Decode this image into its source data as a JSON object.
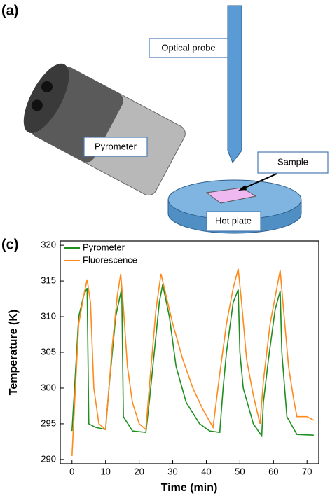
{
  "diagram": {
    "label": "(a)",
    "labels": [
      "Optical probe",
      "Pyrometer",
      "Sample",
      "Hot plate"
    ]
  },
  "chart_data": {
    "type": "line",
    "label": "(c)",
    "x_label": "Time (min)",
    "y_label": "Temperature (K)",
    "xlim": [
      -3.5,
      73.5
    ],
    "ylim": [
      289.4,
      320.6
    ],
    "xticks": [
      0,
      10,
      20,
      30,
      40,
      50,
      60,
      70
    ],
    "yticks": [
      290,
      295,
      300,
      305,
      310,
      315,
      320
    ],
    "legend": "top-left",
    "series": [
      {
        "name": "Pyrometer",
        "color": "#1f8f1f",
        "x": [
          0,
          2,
          3.5,
          4.5,
          5,
          7,
          10,
          11,
          13,
          14.8,
          15.3,
          18,
          22,
          23,
          24.5,
          26,
          27,
          29,
          31,
          34,
          38,
          41,
          44,
          45,
          46,
          48,
          49.5,
          50,
          51,
          54,
          56.5,
          57,
          58.5,
          60.5,
          62,
          62.5,
          64,
          67,
          72
        ],
        "values": [
          294,
          310,
          313,
          314,
          295,
          294.5,
          294.2,
          300,
          310,
          314,
          296,
          294,
          293.8,
          298,
          305,
          312,
          314.5,
          310,
          303,
          298,
          295,
          294,
          293.8,
          300,
          305,
          312,
          313.8,
          305,
          300,
          295,
          293.3,
          298,
          304,
          311,
          313.6,
          305,
          296,
          293.5,
          293.4
        ]
      },
      {
        "name": "Fluorescence",
        "color": "#ff8a1c",
        "x": [
          0,
          1,
          2,
          3.5,
          4.5,
          5.5,
          6.5,
          8,
          10,
          11,
          12,
          13.5,
          14.5,
          15.2,
          16.5,
          18,
          20,
          22,
          23,
          25,
          26.5,
          28,
          30,
          33,
          36,
          39,
          42,
          44,
          46,
          48,
          49.5,
          50.5,
          52,
          54,
          56,
          57,
          59,
          61,
          62,
          63,
          64.5,
          66,
          67,
          70,
          72
        ],
        "values": [
          290.5,
          300,
          309,
          313,
          315.2,
          312,
          300,
          295,
          294.2,
          300,
          306,
          313,
          316,
          312,
          303,
          298,
          295,
          294.2,
          300,
          311,
          316,
          313,
          309,
          304,
          300,
          297,
          294.5,
          302,
          309,
          314,
          316.7,
          312,
          304,
          299,
          295,
          301,
          309,
          314,
          316.5,
          311,
          303,
          298.5,
          296,
          296,
          295.5
        ]
      }
    ]
  }
}
